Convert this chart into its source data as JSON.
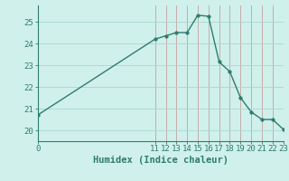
{
  "x": [
    0,
    11,
    12,
    13,
    14,
    15,
    16,
    17,
    18,
    19,
    20,
    21,
    22,
    23
  ],
  "y": [
    20.7,
    24.2,
    24.35,
    24.5,
    24.5,
    25.3,
    25.25,
    23.15,
    22.7,
    21.5,
    20.85,
    20.5,
    20.5,
    20.05
  ],
  "line_color": "#2e7d6e",
  "marker_color": "#2e7d6e",
  "bg_color": "#d0f0eb",
  "grid_color_h": "#a8d8d0",
  "grid_color_v": "#c8a0a0",
  "axis_color": "#2e7d6e",
  "xlabel": "Humidex (Indice chaleur)",
  "xlim": [
    0,
    23
  ],
  "ylim": [
    19.5,
    25.75
  ],
  "yticks": [
    20,
    21,
    22,
    23,
    24,
    25
  ],
  "xticks": [
    0,
    11,
    12,
    13,
    14,
    15,
    16,
    17,
    18,
    19,
    20,
    21,
    22,
    23
  ],
  "xlabel_fontsize": 7.5,
  "tick_fontsize": 6.5,
  "line_width": 1.0,
  "marker_size": 2.5
}
